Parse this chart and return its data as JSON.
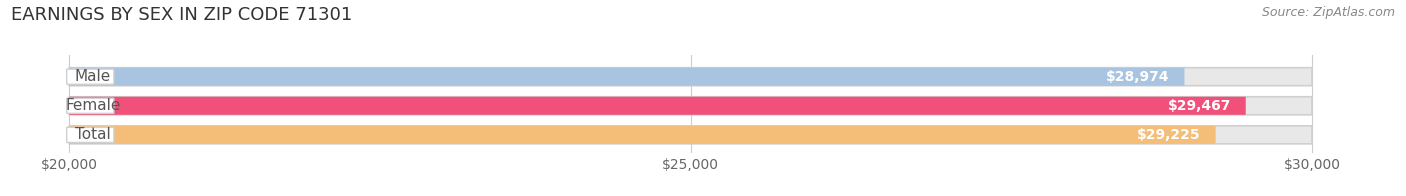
{
  "title": "EARNINGS BY SEX IN ZIP CODE 71301",
  "source": "Source: ZipAtlas.com",
  "categories": [
    "Male",
    "Female",
    "Total"
  ],
  "values": [
    28974,
    29467,
    29225
  ],
  "bar_colors": [
    "#a8c4e0",
    "#f0507a",
    "#f5be78"
  ],
  "label_color": "#555555",
  "value_color": "#ffffff",
  "data_min": 20000,
  "data_max": 30000,
  "tick_labels": [
    "$20,000",
    "$25,000",
    "$30,000"
  ],
  "tick_values": [
    20000,
    25000,
    30000
  ],
  "background_color": "#ffffff",
  "bar_track_color": "#e8e8e8",
  "title_fontsize": 13,
  "source_fontsize": 9,
  "label_fontsize": 11,
  "value_fontsize": 10,
  "tick_fontsize": 10
}
